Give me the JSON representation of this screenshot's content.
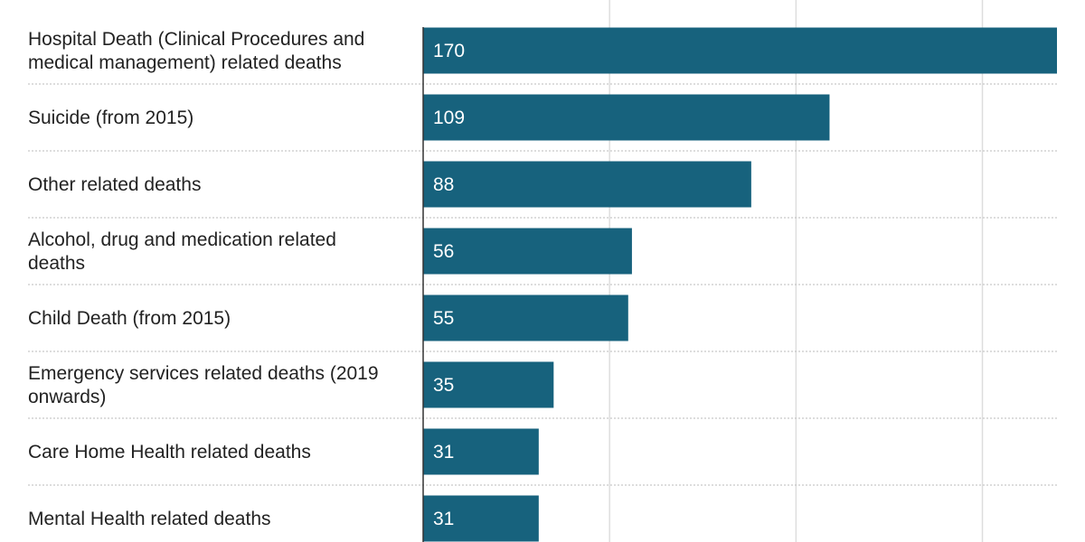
{
  "chart_data": {
    "type": "bar",
    "orientation": "horizontal",
    "categories": [
      [
        "Hospital Death (Clinical Procedures and",
        "medical management) related deaths"
      ],
      [
        "Suicide (from 2015)"
      ],
      [
        "Other related deaths"
      ],
      [
        "Alcohol, drug and medication related",
        "deaths"
      ],
      [
        "Child Death (from 2015)"
      ],
      [
        "Emergency services related deaths (2019",
        "onwards)"
      ],
      [
        "Care Home Health related deaths"
      ],
      [
        "Mental Health related deaths"
      ]
    ],
    "values": [
      170,
      109,
      88,
      56,
      55,
      35,
      31,
      31
    ],
    "value_labels": [
      "170",
      "109",
      "88",
      "56",
      "55",
      "35",
      "31",
      "31"
    ],
    "xlim": [
      0,
      170
    ],
    "x_gridlines": [
      50,
      100,
      150
    ],
    "grid": true,
    "bar_color": "#17627d",
    "title": "",
    "xlabel": "",
    "ylabel": ""
  }
}
